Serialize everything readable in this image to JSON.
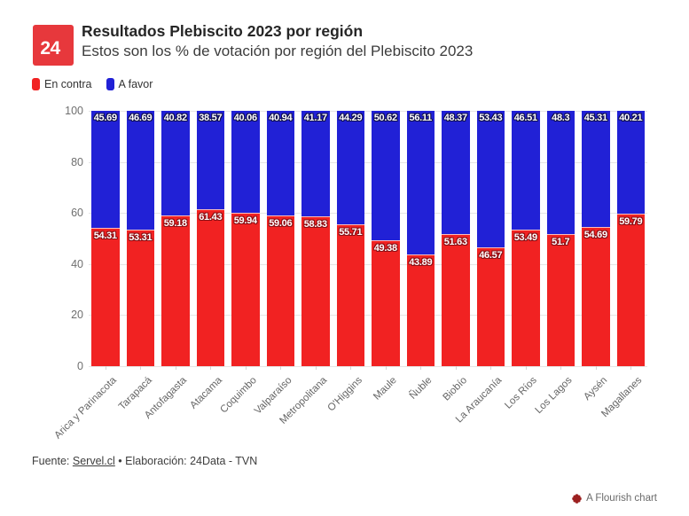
{
  "header": {
    "logo_text": "24",
    "title": "Resultados Plebiscito 2023 por región",
    "subtitle": "Estos son los % de votación por región del Plebiscito 2023"
  },
  "chart_data": {
    "type": "bar",
    "stacked": true,
    "categories": [
      "Arica y Parinacota",
      "Tarapacá",
      "Antofagasta",
      "Atacama",
      "Coquimbo",
      "Valparaíso",
      "Metropolitana",
      "O'Higgins",
      "Maule",
      "Ñuble",
      "Biobío",
      "La Araucanía",
      "Los Ríos",
      "Los Lagos",
      "Aysén",
      "Magallanes"
    ],
    "series": [
      {
        "name": "En contra",
        "color": "#f12222",
        "values": [
          54.31,
          53.31,
          59.18,
          61.43,
          59.94,
          59.06,
          58.83,
          55.71,
          49.38,
          43.89,
          51.63,
          46.57,
          53.49,
          51.7,
          54.69,
          59.79
        ]
      },
      {
        "name": "A favor",
        "color": "#2121d6",
        "values": [
          45.69,
          46.69,
          40.82,
          38.57,
          40.06,
          40.94,
          41.17,
          44.29,
          50.62,
          56.11,
          48.37,
          53.43,
          46.51,
          48.3,
          45.31,
          40.21
        ]
      }
    ],
    "ylim": [
      0,
      100
    ],
    "yticks": [
      0,
      20,
      40,
      60,
      80,
      100
    ],
    "grid": "horizontal",
    "legend_position": "top-left",
    "title": "Resultados Plebiscito 2023 por región",
    "subtitle": "Estos son los % de votación por región del Plebiscito 2023",
    "xlabel": "",
    "ylabel": ""
  },
  "footer": {
    "source_prefix": "Fuente: ",
    "source_link": "Servel.cl",
    "source_suffix": " • Elaboración: 24Data - TVN",
    "credit": "A Flourish chart"
  }
}
